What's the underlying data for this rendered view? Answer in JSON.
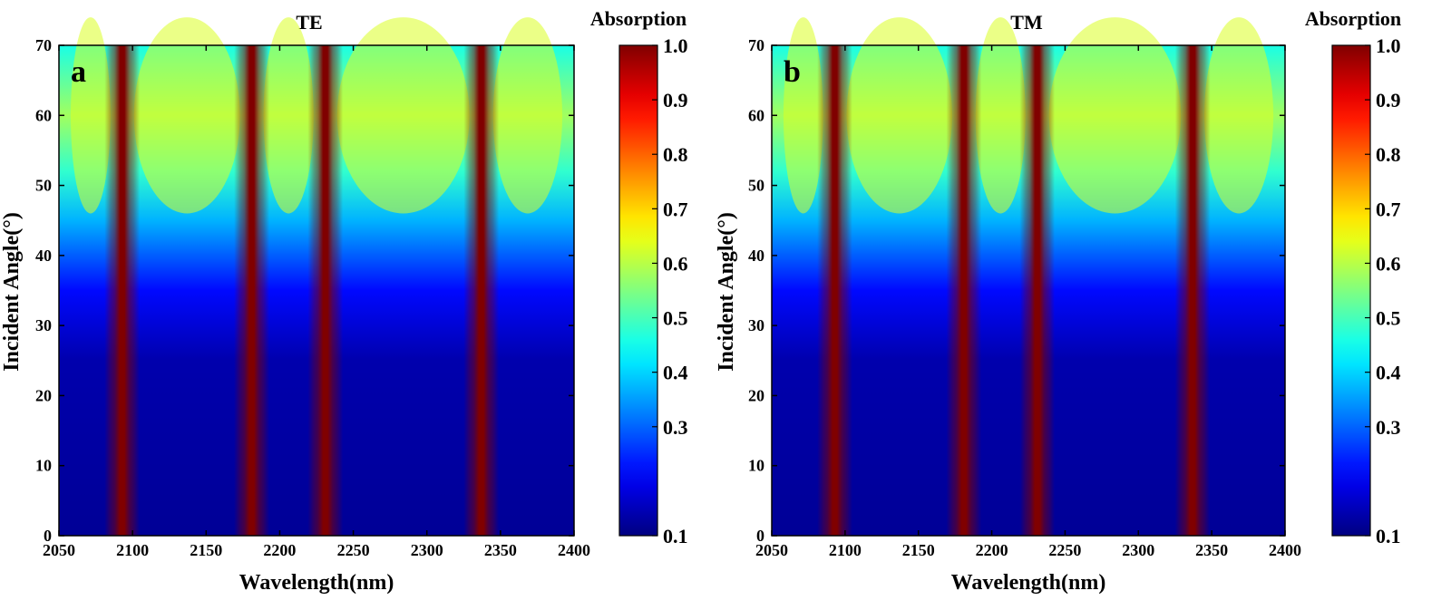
{
  "chart_data": [
    {
      "type": "heatmap",
      "panel_label": "a",
      "title": "TE",
      "xlabel": "Wavelength(nm)",
      "ylabel": "Incident Angle(°)",
      "xlim": [
        2050,
        2400
      ],
      "ylim": [
        0,
        70
      ],
      "x_ticks": [
        "2050",
        "2100",
        "2150",
        "2200",
        "2250",
        "2300",
        "2350",
        "2400"
      ],
      "y_ticks": [
        "0",
        "10",
        "20",
        "30",
        "40",
        "50",
        "60",
        "70"
      ],
      "colorbar": {
        "title": "Absorption",
        "range": [
          0.1,
          1.0
        ],
        "ticks": [
          "0.1",
          "0.3",
          "0.4",
          "0.5",
          "0.6",
          "0.7",
          "0.8",
          "0.9",
          "1.0"
        ],
        "colormap": "jet"
      },
      "resonance_peaks_nm": [
        2093,
        2181,
        2231,
        2337
      ],
      "peak_absorption": 1.0,
      "background_absorption_low_angle": 0.12,
      "background_absorption_at_60deg": 0.58,
      "max_background_angle_deg": 60
    },
    {
      "type": "heatmap",
      "panel_label": "b",
      "title": "TM",
      "xlabel": "Wavelength(nm)",
      "ylabel": "Incident Angle(°)",
      "xlim": [
        2050,
        2400
      ],
      "ylim": [
        0,
        70
      ],
      "x_ticks": [
        "2050",
        "2100",
        "2150",
        "2200",
        "2250",
        "2300",
        "2350",
        "2400"
      ],
      "y_ticks": [
        "0",
        "10",
        "20",
        "30",
        "40",
        "50",
        "60",
        "70"
      ],
      "colorbar": {
        "title": "Absorption",
        "range": [
          0.1,
          1.0
        ],
        "ticks": [
          "0.1",
          "0.3",
          "0.4",
          "0.5",
          "0.6",
          "0.7",
          "0.8",
          "0.9",
          "1.0"
        ],
        "colormap": "jet"
      },
      "resonance_peaks_nm": [
        2093,
        2181,
        2231,
        2337
      ],
      "peak_absorption": 1.0,
      "background_absorption_low_angle": 0.12,
      "background_absorption_at_60deg": 0.58,
      "max_background_angle_deg": 60
    }
  ]
}
